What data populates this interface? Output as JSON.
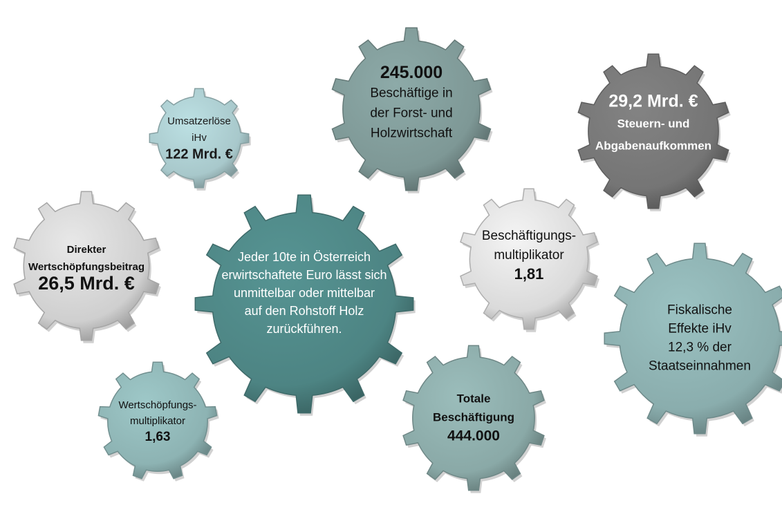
{
  "nodes": [
    {
      "lines": [
        "Umsatzerlöse",
        "iHv",
        "122 Mrd. €"
      ]
    },
    {
      "lines": [
        "245.000",
        "Beschäftige in",
        "der Forst- und",
        "Holzwirtschaft"
      ]
    },
    {
      "lines": [
        "29,2 Mrd. €",
        "Steuern- und",
        "Abgabenaufkommen"
      ]
    },
    {
      "lines": [
        "Direkter",
        "Wertschöpfungsbeitrag",
        "26,5 Mrd. €"
      ]
    },
    {
      "lines": [
        "Jeder 10te in Österreich",
        "erwirtschaftete Euro lässt sich",
        "unmittelbar oder mittelbar",
        "auf den Rohstoff Holz",
        "zurückführen."
      ]
    },
    {
      "lines": [
        "Beschäftigungs-",
        "multiplikator",
        "1,81"
      ]
    },
    {
      "lines": [
        "Fiskalische",
        "Effekte iHv",
        "12,3 % der",
        "Staatseinnahmen"
      ]
    },
    {
      "lines": [
        "Wertschöpfungs-",
        "multiplikator",
        "1,63"
      ]
    },
    {
      "lines": [
        "Totale",
        "Beschäftigung",
        "444.000"
      ]
    }
  ]
}
